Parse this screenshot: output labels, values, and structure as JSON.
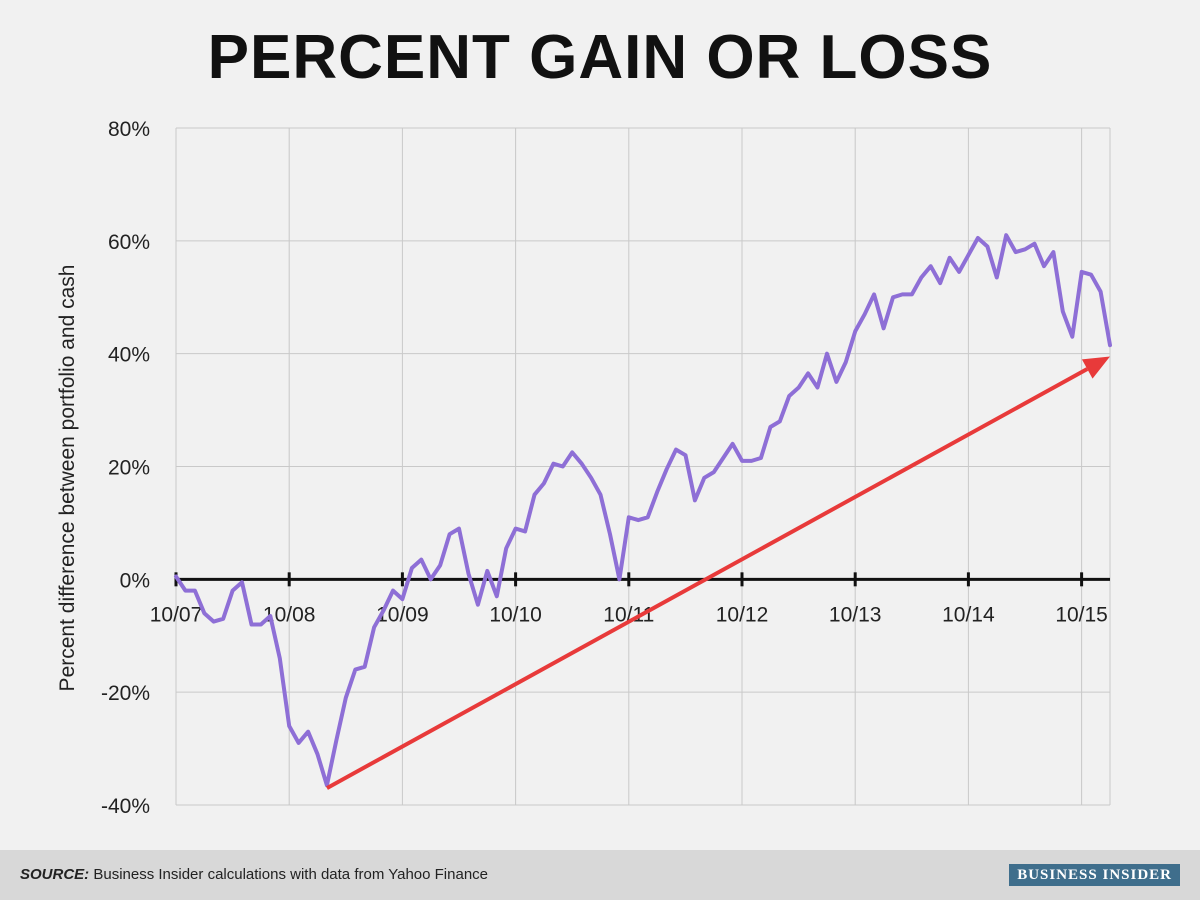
{
  "chart_data": {
    "type": "line",
    "title": "PERCENT GAIN OR LOSS",
    "ylabel": "Percent difference between portfolio and cash",
    "xlabel": "",
    "ylim": [
      -40,
      80
    ],
    "y_ticks": [
      80,
      60,
      40,
      20,
      0,
      -20,
      -40
    ],
    "y_tick_labels": [
      "80%",
      "60%",
      "40%",
      "20%",
      "0%",
      "-20%",
      "-40%"
    ],
    "x_tick_labels": [
      "10/07",
      "10/08",
      "10/09",
      "10/10",
      "10/11",
      "10/12",
      "10/13",
      "10/14",
      "10/15"
    ],
    "grid": true,
    "series": [
      {
        "color": "#8e6fd6",
        "values": [
          0.5,
          -2,
          -2,
          -6,
          -7.5,
          -7,
          -2,
          -0.5,
          -8,
          -8,
          -6.5,
          -14,
          -26,
          -29,
          -27,
          -31,
          -36.5,
          -28.5,
          -21,
          -16,
          -15.5,
          -8.5,
          -5.5,
          -2,
          -3.5,
          2,
          3.5,
          0,
          2.5,
          8,
          9,
          1,
          -4.5,
          1.5,
          -3,
          5.5,
          9,
          8.5,
          15,
          17,
          20.5,
          20,
          22.5,
          20.5,
          18,
          15,
          8,
          0,
          11,
          10.5,
          11,
          15.5,
          19.5,
          23,
          22,
          14,
          18,
          19,
          21.5,
          24,
          21,
          21,
          21.5,
          27,
          28,
          32.5,
          34,
          36.5,
          34,
          40,
          35,
          38.5,
          44,
          47,
          50.5,
          44.5,
          50,
          50.5,
          50.5,
          53.5,
          55.5,
          52.5,
          57,
          54.5,
          57.5,
          60.5,
          59,
          53.5,
          61,
          58,
          58.5,
          59.5,
          55.5,
          58,
          47.5,
          43,
          54.5,
          54,
          51,
          41.5
        ]
      }
    ],
    "annotations": [
      {
        "type": "trend-arrow",
        "color": "#e83a3a",
        "from": {
          "x_index": 16,
          "y": -37
        },
        "to": {
          "x_index": 99,
          "y": 39.5
        }
      }
    ]
  },
  "source": {
    "label": "SOURCE:",
    "text": "Business Insider calculations with data from Yahoo Finance"
  },
  "brand": {
    "name": "BUSINESS INSIDER"
  }
}
